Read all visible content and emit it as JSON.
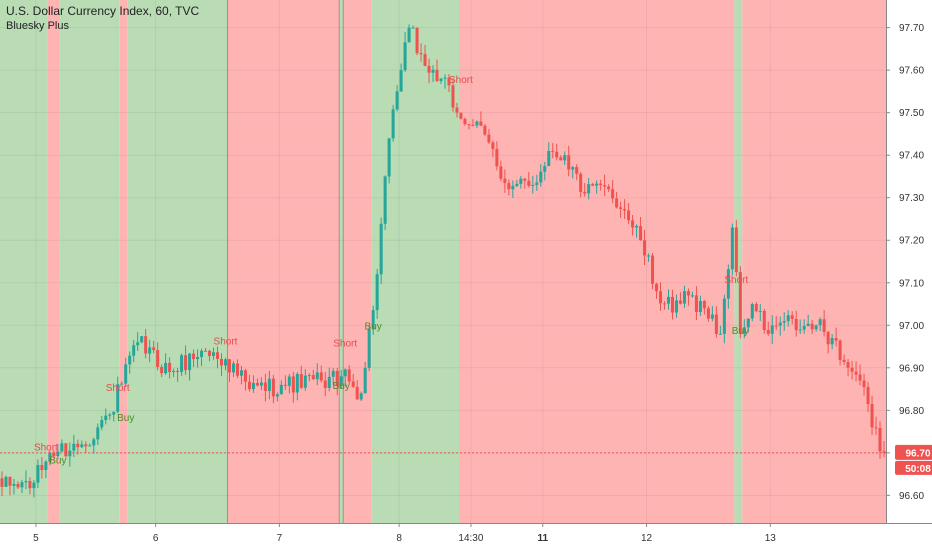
{
  "chart_data": {
    "type": "candlestick",
    "title": "U.S. Dollar Currency Index, 60, TVC",
    "subtitle": "Bluesky Plus",
    "xlabel": "",
    "ylabel": "",
    "ylim": [
      96.535,
      97.765
    ],
    "y_ticks": [
      "96.60",
      "96.70",
      "96.80",
      "96.90",
      "97.00",
      "97.10",
      "97.20",
      "97.30",
      "97.40",
      "97.50",
      "97.60",
      "97.70"
    ],
    "x_range": [
      -0.5,
      221.5
    ],
    "x_ticks": [
      {
        "label": "5",
        "bar": 8.5,
        "bold": false
      },
      {
        "label": "6",
        "bar": 38.5,
        "bold": false
      },
      {
        "label": "7",
        "bar": 69.5,
        "bold": false
      },
      {
        "label": "8",
        "bar": 99.5,
        "bold": false
      },
      {
        "label": "14:30",
        "bar": 117.5,
        "bold": false
      },
      {
        "label": "11",
        "bar": 135.5,
        "bold": true
      },
      {
        "label": "12",
        "bar": 161.5,
        "bold": false
      },
      {
        "label": "13",
        "bar": 192.5,
        "bold": false
      }
    ],
    "grid": true,
    "colors": {
      "up": "#26a69a",
      "down": "#ef5350",
      "bg_long": "#b9dcb5",
      "bg_short": "#ffb4b4",
      "signal_short": "#e64b4b",
      "signal_buy": "#4e8a28",
      "price_badge": "#ef5350"
    },
    "background_regimes": [
      {
        "start": 0,
        "end": 11,
        "regime": "long"
      },
      {
        "start": 12,
        "end": 14,
        "regime": "short"
      },
      {
        "start": 15,
        "end": 29,
        "regime": "long"
      },
      {
        "start": 30,
        "end": 31,
        "regime": "short"
      },
      {
        "start": 32,
        "end": 56,
        "regime": "long"
      },
      {
        "start": 57,
        "end": 84,
        "regime": "short"
      },
      {
        "start": 85,
        "end": 85,
        "regime": "long"
      },
      {
        "start": 86,
        "end": 92,
        "regime": "short"
      },
      {
        "start": 93,
        "end": 114,
        "regime": "long"
      },
      {
        "start": 115,
        "end": 183,
        "regime": "short"
      },
      {
        "start": 184,
        "end": 185,
        "regime": "long"
      },
      {
        "start": 186,
        "end": 221,
        "regime": "short"
      }
    ],
    "signals": [
      {
        "label": "Short",
        "bar": 11,
        "price": 96.705
      },
      {
        "label": "Buy",
        "bar": 14,
        "price": 96.675
      },
      {
        "label": "Short",
        "bar": 29,
        "price": 96.845
      },
      {
        "label": "Buy",
        "bar": 31,
        "price": 96.775
      },
      {
        "label": "Short",
        "bar": 56,
        "price": 96.955
      },
      {
        "label": "Short",
        "bar": 86,
        "price": 96.95
      },
      {
        "label": "Buy",
        "bar": 85,
        "price": 96.85
      },
      {
        "label": "Buy",
        "bar": 93,
        "price": 96.99
      },
      {
        "label": "Short",
        "bar": 115,
        "price": 97.57
      },
      {
        "label": "Short",
        "bar": 184,
        "price": 97.1
      },
      {
        "label": "Buy",
        "bar": 185,
        "price": 96.98
      }
    ],
    "key_points": [
      [
        0,
        96.62
      ],
      [
        8,
        96.63
      ],
      [
        12,
        96.7
      ],
      [
        20,
        96.72
      ],
      [
        27,
        96.79
      ],
      [
        34,
        96.96
      ],
      [
        42,
        96.89
      ],
      [
        50,
        96.94
      ],
      [
        56,
        96.92
      ],
      [
        62,
        96.85
      ],
      [
        70,
        96.86
      ],
      [
        80,
        96.87
      ],
      [
        85,
        96.88
      ],
      [
        90,
        96.84
      ],
      [
        94,
        97.12
      ],
      [
        96,
        97.35
      ],
      [
        99,
        97.55
      ],
      [
        102,
        97.7
      ],
      [
        106,
        97.61
      ],
      [
        110,
        97.58
      ],
      [
        114,
        97.5
      ],
      [
        118,
        97.47
      ],
      [
        122,
        97.43
      ],
      [
        127,
        97.32
      ],
      [
        133,
        97.33
      ],
      [
        137,
        97.41
      ],
      [
        141,
        97.4
      ],
      [
        146,
        97.31
      ],
      [
        152,
        97.32
      ],
      [
        156,
        97.27
      ],
      [
        160,
        97.2
      ],
      [
        164,
        97.08
      ],
      [
        168,
        97.03
      ],
      [
        172,
        97.07
      ],
      [
        176,
        97.04
      ],
      [
        180,
        96.98
      ],
      [
        183,
        97.23
      ],
      [
        185,
        96.98
      ],
      [
        188,
        97.05
      ],
      [
        192,
        96.98
      ],
      [
        196,
        97.01
      ],
      [
        200,
        96.99
      ],
      [
        204,
        97.0
      ],
      [
        208,
        96.97
      ],
      [
        212,
        96.9
      ],
      [
        215,
        96.87
      ],
      [
        218,
        96.76
      ],
      [
        221,
        96.7
      ]
    ],
    "current_price": "96.70",
    "countdown": "50:08"
  }
}
